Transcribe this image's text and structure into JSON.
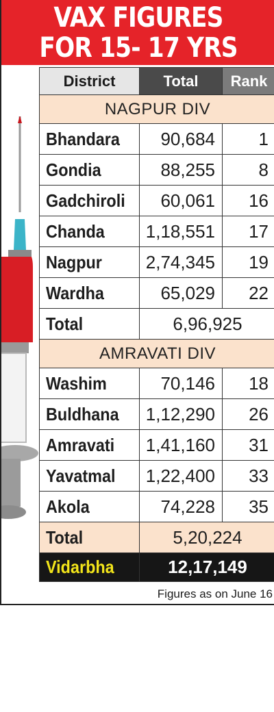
{
  "title": {
    "line1": "VAX FIGURES",
    "line2": "FOR 15- 17 YRS"
  },
  "header": {
    "district": "District",
    "total": "Total",
    "rank": "Rank"
  },
  "divisions": [
    {
      "name": "NAGPUR DIV",
      "rows": [
        {
          "district": "Bhandara",
          "total": "90,684",
          "rank": "1"
        },
        {
          "district": "Gondia",
          "total": "88,255",
          "rank": "8"
        },
        {
          "district": "Gadchiroli",
          "total": "60,061",
          "rank": "16"
        },
        {
          "district": "Chanda",
          "total": "1,18,551",
          "rank": "17"
        },
        {
          "district": "Nagpur",
          "total": "2,74,345",
          "rank": "19"
        },
        {
          "district": "Wardha",
          "total": "65,029",
          "rank": "22"
        }
      ],
      "total_label": "Total",
      "total_value": "6,96,925"
    },
    {
      "name": "AMRAVATI DIV",
      "rows": [
        {
          "district": "Washim",
          "total": "70,146",
          "rank": "18"
        },
        {
          "district": "Buldhana",
          "total": "1,12,290",
          "rank": "26"
        },
        {
          "district": "Amravati",
          "total": "1,41,160",
          "rank": "31"
        },
        {
          "district": "Yavatmal",
          "total": "1,22,400",
          "rank": "33"
        },
        {
          "district": "Akola",
          "total": "74,228",
          "rank": "35"
        }
      ],
      "total_label": "Total",
      "total_value": "5,20,224"
    }
  ],
  "grand_total": {
    "label": "Vidarbha",
    "value": "12,17,149"
  },
  "footnote": "Figures as on June 16",
  "colors": {
    "banner": "#e52329",
    "division_bg": "#fbe2cc",
    "grand_label": "#f3e51a"
  }
}
